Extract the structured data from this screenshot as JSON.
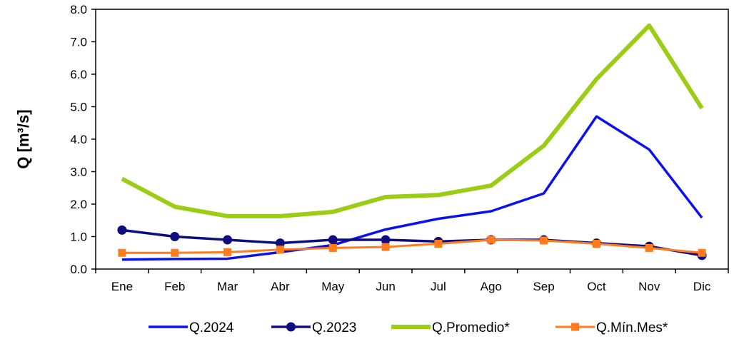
{
  "chart_data": {
    "type": "line",
    "title": "",
    "xlabel": "",
    "ylabel": "Q [m³/s]",
    "ylim": [
      0,
      8
    ],
    "yticks": [
      "0.0",
      "1.0",
      "2.0",
      "3.0",
      "4.0",
      "5.0",
      "6.0",
      "7.0",
      "8.0"
    ],
    "categories": [
      "Ene",
      "Feb",
      "Mar",
      "Abr",
      "May",
      "Jun",
      "Jul",
      "Ago",
      "Sep",
      "Oct",
      "Nov",
      "Dic"
    ],
    "grid": false,
    "legend": "bottom",
    "series": [
      {
        "name": "Q.2024",
        "color": "#0a10f0",
        "marker": "none",
        "values": [
          0.29,
          0.31,
          0.32,
          0.52,
          0.74,
          1.22,
          1.55,
          1.78,
          2.33,
          4.7,
          3.68,
          1.58
        ]
      },
      {
        "name": "Q.2023",
        "color": "#0d0d80",
        "marker": "circle",
        "values": [
          1.2,
          1.0,
          0.9,
          0.8,
          0.9,
          0.9,
          0.85,
          0.9,
          0.9,
          0.8,
          0.7,
          0.42
        ]
      },
      {
        "name": "Q.Promedio*",
        "color": "#9acd14",
        "marker": "none",
        "values": [
          2.78,
          1.92,
          1.63,
          1.63,
          1.76,
          2.22,
          2.28,
          2.57,
          3.8,
          5.85,
          7.5,
          4.95
        ]
      },
      {
        "name": "Q.Mín.Mes*",
        "color": "#ff7b1c",
        "marker": "square",
        "values": [
          0.5,
          0.5,
          0.52,
          0.6,
          0.65,
          0.68,
          0.78,
          0.9,
          0.88,
          0.78,
          0.65,
          0.5
        ]
      }
    ]
  }
}
